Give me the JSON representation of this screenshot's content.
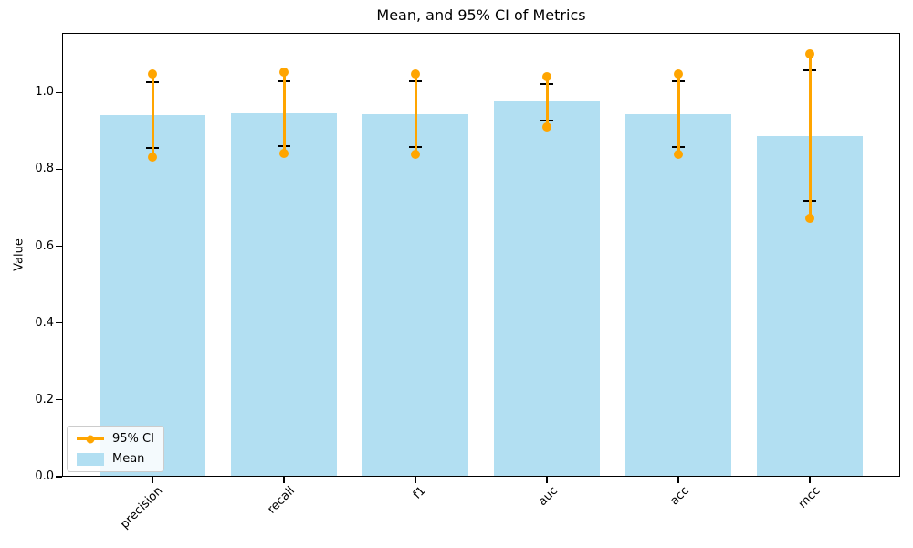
{
  "legend": {
    "items": [
      {
        "label": "95% CI"
      },
      {
        "label": "Mean"
      }
    ]
  },
  "chart_data": {
    "type": "bar",
    "title": "Mean, and 95% CI of Metrics",
    "xlabel": "",
    "ylabel": "Value",
    "categories": [
      "precision",
      "recall",
      "f1",
      "auc",
      "acc",
      "mcc"
    ],
    "series": [
      {
        "name": "Mean",
        "style": "bar",
        "values": [
          0.94,
          0.946,
          0.943,
          0.976,
          0.943,
          0.887
        ]
      },
      {
        "name": "95% CI lower",
        "style": "point",
        "values": [
          0.831,
          0.842,
          0.838,
          0.911,
          0.839,
          0.673
        ]
      },
      {
        "name": "95% CI upper",
        "style": "point",
        "values": [
          1.049,
          1.052,
          1.049,
          1.04,
          1.049,
          1.1
        ]
      },
      {
        "name": "errorbar lower cap",
        "style": "cap",
        "values": [
          0.855,
          0.861,
          0.859,
          0.926,
          0.859,
          0.717
        ]
      },
      {
        "name": "errorbar upper cap",
        "style": "cap",
        "values": [
          1.027,
          1.03,
          1.029,
          1.022,
          1.03,
          1.057
        ]
      }
    ],
    "yticks": [
      "0.0",
      "0.2",
      "0.4",
      "0.6",
      "0.8",
      "1.0"
    ],
    "ylim": [
      0,
      1.155
    ],
    "grid": false,
    "legend_position": "lower left",
    "bar_color": "#B2DFF2",
    "ci_color": "#FFA500",
    "cap_color": "#000000",
    "axis_color": "#000000"
  }
}
